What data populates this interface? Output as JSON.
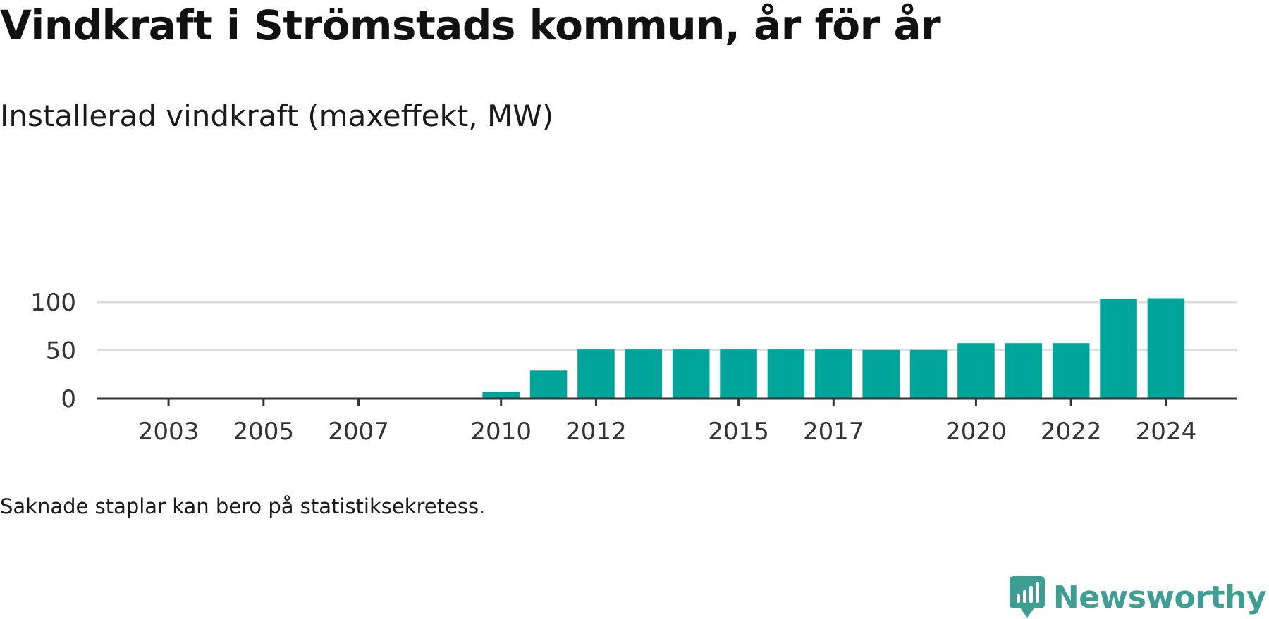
{
  "title": "Vindkraft i Strömstads kommun, år för år",
  "subtitle": "Installerad vindkraft (maxeffekt, MW)",
  "note": "Saknade staplar kan bero på statistiksekretess.",
  "brand": {
    "name": "Newsworthy",
    "icon": "newsworthy-logo-icon"
  },
  "colors": {
    "bar": "#00a59a",
    "brand": "#3e9e93",
    "grid": "#dddddd",
    "axis": "#333333"
  },
  "chart_data": {
    "type": "bar",
    "x_range": [
      2001.5,
      2025.5
    ],
    "ylim": [
      0,
      110
    ],
    "yticks": [
      0,
      50,
      100
    ],
    "xticks": [
      "2003",
      "2005",
      "2007",
      "2010",
      "2012",
      "2015",
      "2017",
      "2020",
      "2022",
      "2024"
    ],
    "grid": true,
    "bars": [
      {
        "year": 2010,
        "value": 7
      },
      {
        "year": 2011,
        "value": 29
      },
      {
        "year": 2012,
        "value": 51
      },
      {
        "year": 2013,
        "value": 51
      },
      {
        "year": 2014,
        "value": 51
      },
      {
        "year": 2015,
        "value": 51
      },
      {
        "year": 2016,
        "value": 51
      },
      {
        "year": 2017,
        "value": 51
      },
      {
        "year": 2018,
        "value": 50.5
      },
      {
        "year": 2019,
        "value": 50.5
      },
      {
        "year": 2020,
        "value": 57.5
      },
      {
        "year": 2021,
        "value": 57.5
      },
      {
        "year": 2022,
        "value": 57.5
      },
      {
        "year": 2023,
        "value": 103.5
      },
      {
        "year": 2024,
        "value": 104
      }
    ]
  }
}
